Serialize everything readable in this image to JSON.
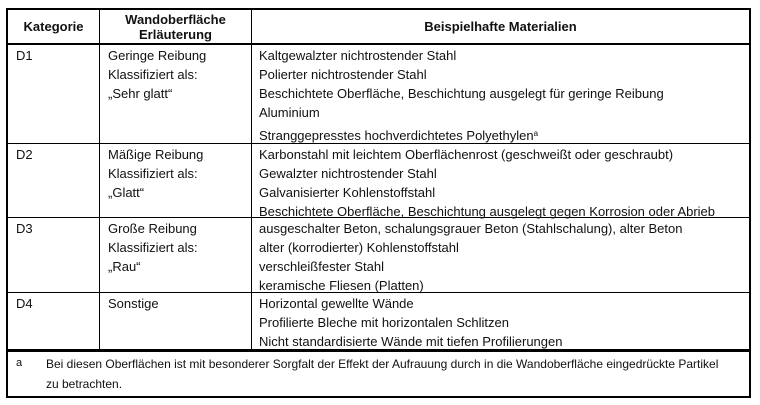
{
  "header": {
    "kategorie": "Kategorie",
    "wand1": "Wandoberfläche",
    "wand2": "Erläuterung",
    "material": "Beispielhafte Materialien"
  },
  "rows": [
    {
      "cat": "D1",
      "desc": [
        "Geringe Reibung",
        "Klassifiziert als:",
        "„Sehr glatt“"
      ],
      "mat": [
        "Kaltgewalzter nichtrostender Stahl",
        "Polierter nichtrostender Stahl",
        "Beschichtete Oberfläche, Beschichtung ausgelegt für geringe Reibung",
        "Aluminium",
        "Stranggepresstes hochverdichtetes Polyethylen"
      ],
      "mat_sup": "a"
    },
    {
      "cat": "D2",
      "desc": [
        "Mäßige Reibung",
        "Klassifiziert als:",
        "„Glatt“"
      ],
      "mat": [
        "Karbonstahl mit leichtem Oberflächenrost (geschweißt oder geschraubt)",
        "Gewalzter nichtrostender Stahl",
        "Galvanisierter Kohlenstoffstahl",
        "Beschichtete Oberfläche, Beschichtung ausgelegt gegen Korrosion oder Abrieb"
      ]
    },
    {
      "cat": "D3",
      "desc": [
        "Große Reibung",
        "Klassifiziert als:",
        "„Rau“"
      ],
      "mat": [
        "ausgeschalter Beton, schalungsgrauer Beton (Stahlschalung), alter Beton",
        "alter (korrodierter) Kohlenstoffstahl",
        "verschleißfester Stahl",
        "keramische Fliesen (Platten)"
      ]
    },
    {
      "cat": "D4",
      "desc": [
        "Sonstige"
      ],
      "mat": [
        "Horizontal gewellte Wände",
        "Profilierte Bleche mit horizontalen Schlitzen",
        "Nicht standardisierte Wände mit tiefen Profilierungen"
      ]
    }
  ],
  "footnote": {
    "mark": "a",
    "line1": "Bei diesen Oberflächen ist mit besonderer Sorgfalt der Effekt der Aufrauung durch in die Wandoberfläche eingedrückte Partikel",
    "line2": "zu betrachten."
  }
}
